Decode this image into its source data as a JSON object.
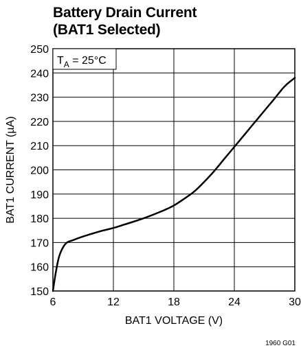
{
  "chart_data": {
    "type": "line",
    "title_line1": "Battery Drain Current",
    "title_line2": "(BAT1 Selected)",
    "xlabel": "BAT1 VOLTAGE (V)",
    "ylabel": "BAT1 CURRENT (µA)",
    "xlim": [
      6,
      30
    ],
    "ylim": [
      150,
      250
    ],
    "xticks": [
      6,
      12,
      18,
      24,
      30
    ],
    "yticks": [
      150,
      160,
      170,
      180,
      190,
      200,
      210,
      220,
      230,
      240,
      250
    ],
    "grid": true,
    "annotation": {
      "base": "T",
      "sub": "A",
      "rest": " = 25°C"
    },
    "figure_code": "1960 G01",
    "line_color": "#000000",
    "series": [
      {
        "x": [
          6.0,
          6.3,
          6.6,
          7.0,
          7.4,
          8.0,
          9.0,
          10.0,
          11.0,
          12.0,
          13.0,
          14.0,
          15.0,
          16.0,
          17.0,
          18.0,
          19.0,
          20.0,
          21.0,
          22.0,
          23.0,
          24.0,
          25.0,
          26.0,
          27.0,
          28.0,
          29.0,
          30.0
        ],
        "values": [
          150,
          158,
          164,
          168,
          170,
          171,
          172.5,
          173.8,
          175,
          176,
          177.3,
          178.6,
          180,
          181.6,
          183.3,
          185.3,
          188,
          191,
          195,
          199.5,
          204.5,
          209.5,
          214.5,
          219.5,
          224.5,
          229.5,
          234.5,
          238
        ]
      }
    ]
  }
}
